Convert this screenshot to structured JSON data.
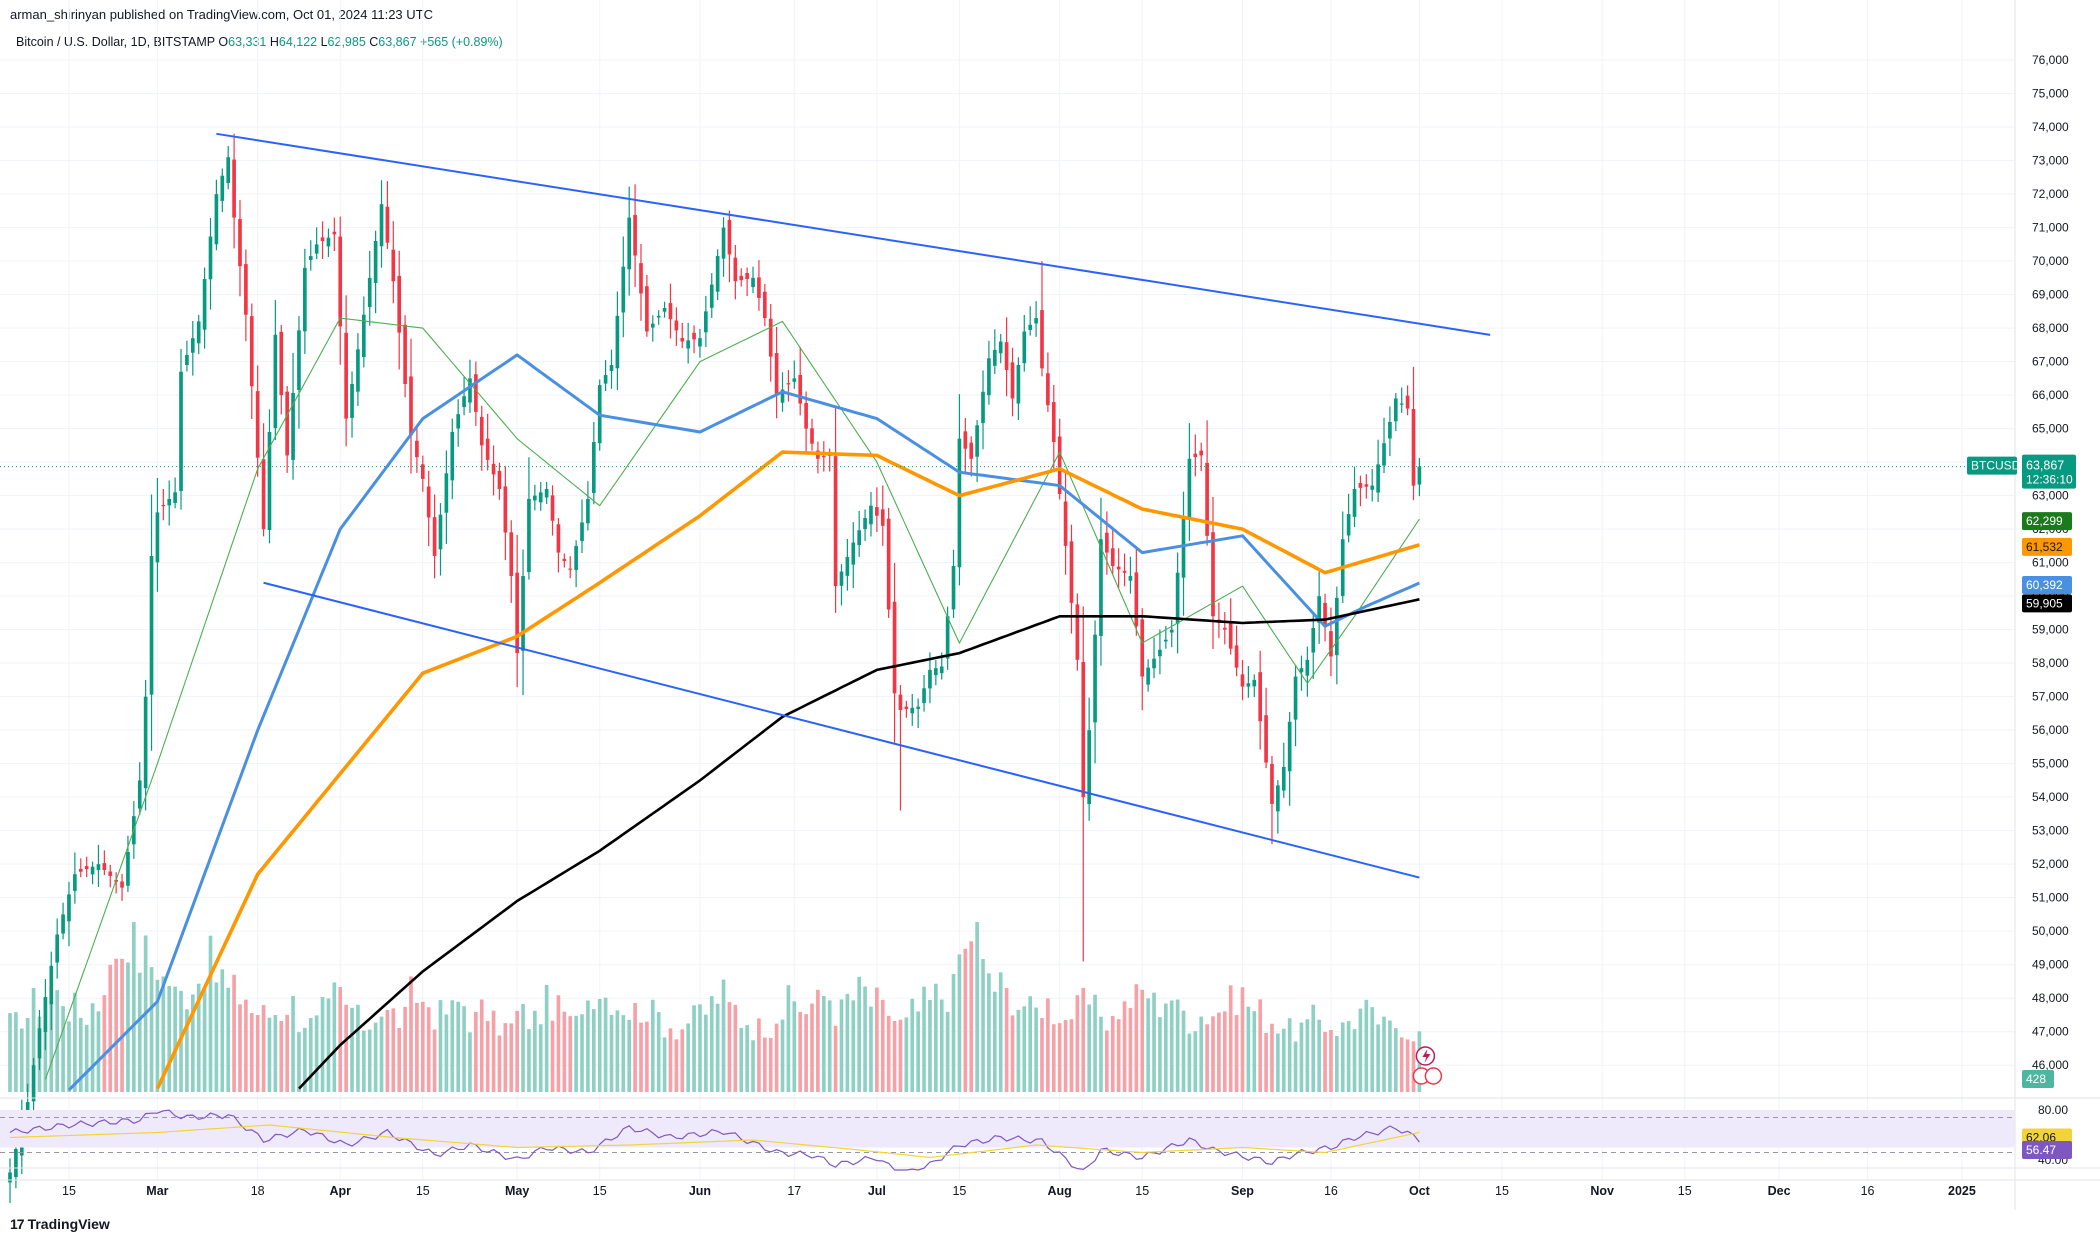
{
  "header": {
    "published_by": "arman_shirinyan published on TradingView.com, Oct 01, 2024 11:23 UTC"
  },
  "legend": {
    "symbol": "Bitcoin / U.S. Dollar, 1D, BITSTAMP",
    "open_label": "O",
    "open": "63,331",
    "high_label": "H",
    "high": "64,122",
    "low_label": "L",
    "low": "62,985",
    "close_label": "C",
    "close": "63,867",
    "change": "+565 (+0.89%)"
  },
  "footer": {
    "brand": "TradingView",
    "brand_mark": "17"
  },
  "colors": {
    "up": "#089981",
    "down": "#f23645",
    "vol_up": "#8fd0c5",
    "vol_down": "#f5a1a8",
    "ma_fast": "#4caf50",
    "ma_50": "#4a90e2",
    "ma_100": "#ff9800",
    "ma_200": "#000000",
    "channel": "#2962ff",
    "rsi": "#7e57c2",
    "rsi_ma": "#f2d43a",
    "rsi_band": "#efeafb"
  },
  "chart_data": {
    "type": "candlestick",
    "symbol": "BTCUSD",
    "interval": "1D",
    "y_axis": {
      "range": [
        45200,
        76600
      ],
      "ticks": [
        46000,
        47000,
        48000,
        49000,
        50000,
        51000,
        52000,
        53000,
        54000,
        55000,
        56000,
        57000,
        58000,
        59000,
        60000,
        61000,
        62000,
        63000,
        64000,
        65000,
        66000,
        67000,
        68000,
        69000,
        70000,
        71000,
        72000,
        73000,
        74000,
        75000,
        76000
      ],
      "tick_labels": [
        "46,000",
        "47,000",
        "48,000",
        "49,000",
        "50,000",
        "51,000",
        "52,000",
        "53,000",
        "54,000",
        "55,000",
        "56,000",
        "57,000",
        "58,000",
        "59,000",
        "60,000",
        "61,000",
        "62,000",
        "63,000",
        "64,000",
        "65,000",
        "66,000",
        "67,000",
        "68,000",
        "69,000",
        "70,000",
        "71,000",
        "72,000",
        "73,000",
        "74,000",
        "75,000",
        "76,000"
      ],
      "scale": "linear"
    },
    "x_axis": {
      "tick_labels": [
        "15",
        "Mar",
        "18",
        "Apr",
        "15",
        "May",
        "15",
        "Jun",
        "17",
        "Jul",
        "15",
        "Aug",
        "15",
        "Sep",
        "16",
        "Oct",
        "15",
        "Nov",
        "15",
        "Dec",
        "16",
        "2025"
      ],
      "tick_positions": [
        "2024-02-15",
        "2024-03-01",
        "2024-03-18",
        "2024-04-01",
        "2024-04-15",
        "2024-05-01",
        "2024-05-15",
        "2024-06-01",
        "2024-06-17",
        "2024-07-01",
        "2024-07-15",
        "2024-08-01",
        "2024-08-15",
        "2024-09-01",
        "2024-09-16",
        "2024-10-01",
        "2024-10-15",
        "2024-11-01",
        "2024-11-15",
        "2024-12-01",
        "2024-12-16",
        "2025-01-01"
      ],
      "range": [
        "2024-02-05",
        "2025-01-10"
      ]
    },
    "price_anchors": [
      [
        "2024-02-05",
        42800
      ],
      [
        "2024-02-08",
        44900
      ],
      [
        "2024-02-10",
        47100
      ],
      [
        "2024-02-13",
        49900
      ],
      [
        "2024-02-16",
        51700
      ],
      [
        "2024-02-20",
        52000
      ],
      [
        "2024-02-24",
        51300
      ],
      [
        "2024-02-27",
        54500
      ],
      [
        "2024-02-28",
        57000
      ],
      [
        "2024-02-29",
        61200
      ],
      [
        "2024-03-01",
        62500
      ],
      [
        "2024-03-04",
        63100
      ],
      [
        "2024-03-05",
        66700
      ],
      [
        "2024-03-08",
        68200
      ],
      [
        "2024-03-11",
        72000
      ],
      [
        "2024-03-13",
        73100
      ],
      [
        "2024-03-14",
        71300
      ],
      [
        "2024-03-16",
        68400
      ],
      [
        "2024-03-19",
        62000
      ],
      [
        "2024-03-21",
        67800
      ],
      [
        "2024-03-23",
        64200
      ],
      [
        "2024-03-26",
        69800
      ],
      [
        "2024-03-28",
        70500
      ],
      [
        "2024-03-31",
        70800
      ],
      [
        "2024-04-02",
        65300
      ],
      [
        "2024-04-05",
        68400
      ],
      [
        "2024-04-08",
        71700
      ],
      [
        "2024-04-10",
        69400
      ],
      [
        "2024-04-13",
        64800
      ],
      [
        "2024-04-15",
        63500
      ],
      [
        "2024-04-17",
        61200
      ],
      [
        "2024-04-20",
        64900
      ],
      [
        "2024-04-23",
        66500
      ],
      [
        "2024-04-25",
        64500
      ],
      [
        "2024-04-28",
        63200
      ],
      [
        "2024-04-30",
        60600
      ],
      [
        "2024-05-01",
        58300
      ],
      [
        "2024-05-03",
        62900
      ],
      [
        "2024-05-06",
        63200
      ],
      [
        "2024-05-08",
        61300
      ],
      [
        "2024-05-10",
        60800
      ],
      [
        "2024-05-13",
        62900
      ],
      [
        "2024-05-15",
        66300
      ],
      [
        "2024-05-17",
        66900
      ],
      [
        "2024-05-20",
        71300
      ],
      [
        "2024-05-23",
        67900
      ],
      [
        "2024-05-26",
        68600
      ],
      [
        "2024-05-29",
        67600
      ],
      [
        "2024-06-01",
        67700
      ],
      [
        "2024-06-03",
        69300
      ],
      [
        "2024-06-05",
        71000
      ],
      [
        "2024-06-07",
        69400
      ],
      [
        "2024-06-10",
        69500
      ],
      [
        "2024-06-12",
        68300
      ],
      [
        "2024-06-14",
        66000
      ],
      [
        "2024-06-17",
        66500
      ],
      [
        "2024-06-19",
        65000
      ],
      [
        "2024-06-21",
        64100
      ],
      [
        "2024-06-23",
        64200
      ],
      [
        "2024-06-24",
        60300
      ],
      [
        "2024-06-27",
        61600
      ],
      [
        "2024-06-30",
        62700
      ],
      [
        "2024-07-02",
        62100
      ],
      [
        "2024-07-04",
        57100
      ],
      [
        "2024-07-05",
        56600
      ],
      [
        "2024-07-08",
        56700
      ],
      [
        "2024-07-10",
        57800
      ],
      [
        "2024-07-12",
        57900
      ],
      [
        "2024-07-14",
        60900
      ],
      [
        "2024-07-15",
        64700
      ],
      [
        "2024-07-17",
        64100
      ],
      [
        "2024-07-20",
        67100
      ],
      [
        "2024-07-22",
        67600
      ],
      [
        "2024-07-24",
        65900
      ],
      [
        "2024-07-26",
        67900
      ],
      [
        "2024-07-28",
        68300
      ],
      [
        "2024-07-29",
        66800
      ],
      [
        "2024-07-31",
        64600
      ],
      [
        "2024-08-02",
        61500
      ],
      [
        "2024-08-04",
        58100
      ],
      [
        "2024-08-05",
        54000
      ],
      [
        "2024-08-06",
        56000
      ],
      [
        "2024-08-08",
        61700
      ],
      [
        "2024-08-10",
        60900
      ],
      [
        "2024-08-13",
        60600
      ],
      [
        "2024-08-15",
        57600
      ],
      [
        "2024-08-18",
        58400
      ],
      [
        "2024-08-20",
        59000
      ],
      [
        "2024-08-23",
        64100
      ],
      [
        "2024-08-25",
        64200
      ],
      [
        "2024-08-27",
        59400
      ],
      [
        "2024-08-29",
        59000
      ],
      [
        "2024-09-01",
        57300
      ],
      [
        "2024-09-03",
        57500
      ],
      [
        "2024-09-06",
        53800
      ],
      [
        "2024-09-08",
        54900
      ],
      [
        "2024-09-10",
        57600
      ],
      [
        "2024-09-12",
        58100
      ],
      [
        "2024-09-14",
        60000
      ],
      [
        "2024-09-16",
        58200
      ],
      [
        "2024-09-18",
        61700
      ],
      [
        "2024-09-20",
        63200
      ],
      [
        "2024-09-23",
        63300
      ],
      [
        "2024-09-26",
        65200
      ],
      [
        "2024-09-27",
        65900
      ],
      [
        "2024-09-29",
        65600
      ],
      [
        "2024-09-30",
        63300
      ],
      [
        "2024-10-01",
        63867
      ]
    ],
    "last_candle": {
      "date": "2024-10-01",
      "open": 63331,
      "high": 64122,
      "low": 62985,
      "close": 63867
    },
    "moving_averages": [
      {
        "key": "ma_fast",
        "last": 62299,
        "anchors": [
          [
            "2024-02-05",
            42600
          ],
          [
            "2024-03-01",
            55000
          ],
          [
            "2024-03-18",
            63800
          ],
          [
            "2024-04-01",
            68300
          ],
          [
            "2024-04-15",
            68000
          ],
          [
            "2024-05-01",
            64700
          ],
          [
            "2024-05-15",
            62700
          ],
          [
            "2024-06-01",
            67000
          ],
          [
            "2024-06-15",
            68200
          ],
          [
            "2024-07-01",
            64000
          ],
          [
            "2024-07-15",
            58600
          ],
          [
            "2024-08-01",
            64300
          ],
          [
            "2024-08-15",
            58600
          ],
          [
            "2024-09-01",
            60300
          ],
          [
            "2024-09-12",
            57400
          ],
          [
            "2024-09-20",
            59400
          ],
          [
            "2024-10-01",
            62299
          ]
        ]
      },
      {
        "key": "ma_50",
        "last": 60392,
        "anchors": [
          [
            "2024-02-05",
            43500
          ],
          [
            "2024-03-01",
            47900
          ],
          [
            "2024-03-18",
            56000
          ],
          [
            "2024-04-01",
            62000
          ],
          [
            "2024-04-15",
            65300
          ],
          [
            "2024-05-01",
            67200
          ],
          [
            "2024-05-15",
            65400
          ],
          [
            "2024-06-01",
            64900
          ],
          [
            "2024-06-15",
            66100
          ],
          [
            "2024-07-01",
            65300
          ],
          [
            "2024-07-15",
            63700
          ],
          [
            "2024-08-01",
            63300
          ],
          [
            "2024-08-15",
            61300
          ],
          [
            "2024-09-01",
            61800
          ],
          [
            "2024-09-15",
            59100
          ],
          [
            "2024-09-22",
            59700
          ],
          [
            "2024-10-01",
            60392
          ]
        ]
      },
      {
        "key": "ma_100",
        "last": 61532,
        "anchors": [
          [
            "2024-02-05",
            42000
          ],
          [
            "2024-03-01",
            45300
          ],
          [
            "2024-03-18",
            51700
          ],
          [
            "2024-04-01",
            54700
          ],
          [
            "2024-04-15",
            57700
          ],
          [
            "2024-05-01",
            58800
          ],
          [
            "2024-05-15",
            60400
          ],
          [
            "2024-06-01",
            62400
          ],
          [
            "2024-06-15",
            64300
          ],
          [
            "2024-07-01",
            64200
          ],
          [
            "2024-07-15",
            63000
          ],
          [
            "2024-08-01",
            63800
          ],
          [
            "2024-08-15",
            62600
          ],
          [
            "2024-09-01",
            62000
          ],
          [
            "2024-09-15",
            60700
          ],
          [
            "2024-10-01",
            61532
          ]
        ]
      },
      {
        "key": "ma_200",
        "last": 59905,
        "anchors": [
          [
            "2024-02-05",
            40000
          ],
          [
            "2024-03-01",
            42100
          ],
          [
            "2024-03-18",
            44000
          ],
          [
            "2024-04-01",
            46600
          ],
          [
            "2024-04-15",
            48800
          ],
          [
            "2024-05-01",
            50900
          ],
          [
            "2024-05-15",
            52400
          ],
          [
            "2024-06-01",
            54500
          ],
          [
            "2024-06-15",
            56400
          ],
          [
            "2024-07-01",
            57800
          ],
          [
            "2024-07-15",
            58300
          ],
          [
            "2024-08-01",
            59400
          ],
          [
            "2024-08-15",
            59400
          ],
          [
            "2024-09-01",
            59200
          ],
          [
            "2024-09-15",
            59300
          ],
          [
            "2024-10-01",
            59905
          ]
        ]
      }
    ],
    "channel_lines": [
      {
        "from": [
          "2024-03-11",
          73800
        ],
        "to": [
          "2024-10-13",
          67800
        ]
      },
      {
        "from": [
          "2024-03-19",
          60400
        ],
        "to": [
          "2024-10-01",
          51600
        ]
      }
    ],
    "current_price_line": 63867,
    "volume": {
      "levels": [
        0.42,
        0.48,
        0.55,
        0.62,
        0.6,
        0.52,
        0.48,
        0.55,
        0.72,
        0.9,
        1.0,
        0.85,
        0.8,
        0.7,
        0.6,
        0.62,
        0.7,
        0.8,
        0.72,
        0.62,
        0.6,
        0.5,
        0.48,
        0.5,
        0.55,
        0.45,
        0.42,
        0.5,
        0.6,
        0.52,
        0.45,
        0.42,
        0.5,
        0.48,
        0.45,
        0.6,
        0.55,
        0.48,
        0.5,
        0.55,
        0.45,
        0.5,
        0.42,
        0.4,
        0.48,
        0.45,
        0.5,
        0.55,
        0.5,
        0.42,
        0.58,
        0.65,
        0.6,
        0.55,
        0.5,
        0.52,
        0.48,
        0.42,
        0.4,
        0.45,
        0.5,
        0.55,
        0.6,
        0.52,
        0.45,
        0.4,
        0.42,
        0.5,
        0.55,
        0.52,
        0.55,
        0.6,
        0.5,
        0.58,
        0.62,
        0.55,
        0.5,
        0.45,
        0.42,
        0.5,
        0.55,
        0.6,
        0.62,
        0.85,
        1.0,
        0.75,
        0.65,
        0.6,
        0.55,
        0.5,
        0.55,
        0.5,
        0.45,
        0.5,
        0.55,
        0.5,
        0.45,
        0.52,
        0.58,
        0.62,
        0.55,
        0.6,
        0.5,
        0.45,
        0.48,
        0.5,
        0.55,
        0.6,
        0.55,
        0.5,
        0.45,
        0.42,
        0.38,
        0.4,
        0.45,
        0.42,
        0.4,
        0.45,
        0.5,
        0.45,
        0.4,
        0.42,
        0.38,
        0.35
      ],
      "current_label": "428"
    },
    "rsi": {
      "range": [
        40,
        80
      ],
      "ticks": [
        40,
        60,
        80
      ],
      "tick_labels": [
        "40.00",
        "60.00",
        "80.00"
      ],
      "band": [
        30,
        70
      ],
      "rsi_last": "56.47",
      "ma_last": "62.06",
      "rsi_anchors": [
        [
          "2024-02-05",
          62
        ],
        [
          "2024-02-15",
          68
        ],
        [
          "2024-02-27",
          72
        ],
        [
          "2024-03-01",
          80
        ],
        [
          "2024-03-06",
          74
        ],
        [
          "2024-03-13",
          76
        ],
        [
          "2024-03-19",
          56
        ],
        [
          "2024-03-26",
          64
        ],
        [
          "2024-04-02",
          52
        ],
        [
          "2024-04-09",
          62
        ],
        [
          "2024-04-17",
          44
        ],
        [
          "2024-04-23",
          52
        ],
        [
          "2024-05-01",
          40
        ],
        [
          "2024-05-06",
          50
        ],
        [
          "2024-05-13",
          46
        ],
        [
          "2024-05-20",
          66
        ],
        [
          "2024-05-27",
          58
        ],
        [
          "2024-06-05",
          63
        ],
        [
          "2024-06-14",
          46
        ],
        [
          "2024-06-20",
          44
        ],
        [
          "2024-06-24",
          36
        ],
        [
          "2024-07-01",
          42
        ],
        [
          "2024-07-05",
          28
        ],
        [
          "2024-07-10",
          36
        ],
        [
          "2024-07-15",
          52
        ],
        [
          "2024-07-22",
          58
        ],
        [
          "2024-07-29",
          55
        ],
        [
          "2024-08-05",
          30
        ],
        [
          "2024-08-08",
          48
        ],
        [
          "2024-08-15",
          42
        ],
        [
          "2024-08-23",
          56
        ],
        [
          "2024-08-27",
          48
        ],
        [
          "2024-09-06",
          38
        ],
        [
          "2024-09-10",
          45
        ],
        [
          "2024-09-16",
          50
        ],
        [
          "2024-09-20",
          58
        ],
        [
          "2024-09-27",
          66
        ],
        [
          "2024-10-01",
          56.47
        ]
      ],
      "ma_anchors": [
        [
          "2024-02-05",
          58
        ],
        [
          "2024-03-01",
          62
        ],
        [
          "2024-03-20",
          68
        ],
        [
          "2024-04-10",
          58
        ],
        [
          "2024-05-01",
          50
        ],
        [
          "2024-05-20",
          52
        ],
        [
          "2024-06-10",
          56
        ],
        [
          "2024-06-28",
          48
        ],
        [
          "2024-07-10",
          42
        ],
        [
          "2024-07-28",
          52
        ],
        [
          "2024-08-15",
          46
        ],
        [
          "2024-09-01",
          50
        ],
        [
          "2024-09-15",
          46
        ],
        [
          "2024-10-01",
          62.06
        ]
      ]
    }
  },
  "price_axis_labels": {
    "symbol_tag": "BTCUSD",
    "last_price": "63,867",
    "countdown": "12:36:10",
    "ma_fast": "62,299",
    "ma_100": "61,532",
    "ma_50": "60,392",
    "ma_200": "59,905"
  }
}
